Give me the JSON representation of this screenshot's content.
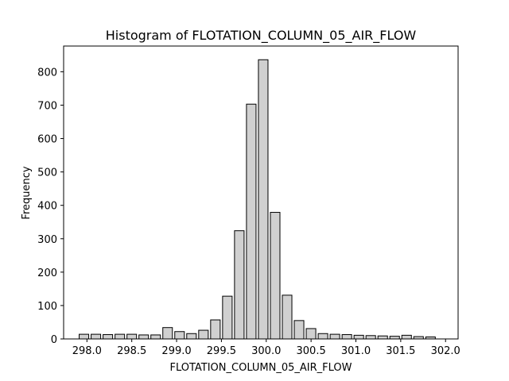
{
  "chart_data": {
    "type": "bar",
    "title": "Histogram of FLOTATION_COLUMN_05_AIR_FLOW",
    "xlabel": "FLOTATION_COLUMN_05_AIR_FLOW",
    "ylabel": "Frequency",
    "xlim": [
      297.74,
      302.14
    ],
    "ylim": [
      0,
      877
    ],
    "bin_start": 297.9,
    "bin_width": 0.1333,
    "bar_color": "#d0d0d0",
    "edge_color": "#000000",
    "grid": false,
    "x_ticks": [
      298.0,
      298.5,
      299.0,
      299.5,
      300.0,
      300.5,
      301.0,
      301.5,
      302.0
    ],
    "x_tick_labels": [
      "298.0",
      "298.5",
      "299.0",
      "299.5",
      "300.0",
      "300.5",
      "301.0",
      "301.5",
      "302.0"
    ],
    "y_ticks": [
      0,
      100,
      200,
      300,
      400,
      500,
      600,
      700,
      800
    ],
    "y_tick_labels": [
      "0",
      "100",
      "200",
      "300",
      "400",
      "500",
      "600",
      "700",
      "800"
    ],
    "values": [
      14,
      14,
      13,
      14,
      14,
      12,
      12,
      34,
      22,
      16,
      26,
      57,
      128,
      324,
      703,
      836,
      379,
      131,
      55,
      31,
      16,
      14,
      13,
      11,
      10,
      9,
      8,
      11,
      7,
      6
    ]
  }
}
